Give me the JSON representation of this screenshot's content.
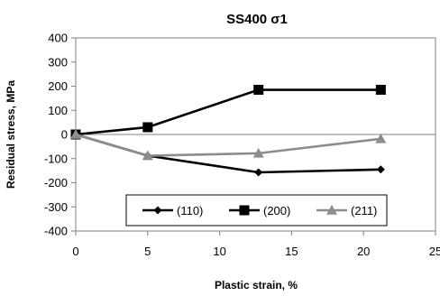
{
  "chart_data": {
    "type": "line",
    "title": "SS400   σ1",
    "xlabel": "Plastic strain, %",
    "ylabel": "Residual stress, MPa",
    "xlim": [
      0,
      25
    ],
    "ylim": [
      -400,
      400
    ],
    "xticks": [
      0,
      5,
      10,
      15,
      20,
      25
    ],
    "yticks": [
      400,
      300,
      200,
      100,
      0,
      -100,
      -200,
      -300,
      -400
    ],
    "grid": false,
    "legend_position": "bottom-right",
    "series": [
      {
        "name": "(110)",
        "marker": "diamond",
        "color": "#000000",
        "x": [
          0,
          5,
          12.7,
          21.2
        ],
        "y": [
          0,
          -88,
          -157,
          -145
        ]
      },
      {
        "name": "(200)",
        "marker": "square",
        "color": "#000000",
        "x": [
          0,
          5,
          12.7,
          21.2
        ],
        "y": [
          0,
          30,
          185,
          185
        ]
      },
      {
        "name": "(211)",
        "marker": "triangle",
        "color": "#8c8c8c",
        "x": [
          0,
          5,
          12.7,
          21.2
        ],
        "y": [
          0,
          -88,
          -78,
          -18
        ]
      }
    ]
  }
}
